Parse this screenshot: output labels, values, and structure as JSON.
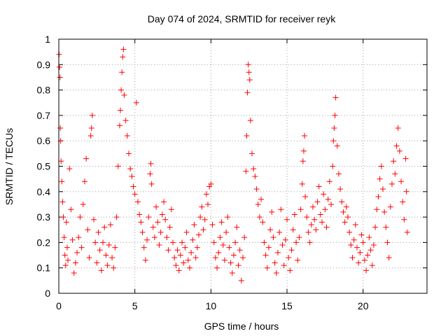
{
  "chart_data": {
    "type": "scatter",
    "title": "Day 074 of 2024, SRMTID for receiver reyk",
    "xlabel": "GPS time / hours",
    "ylabel": "SRMTID / TECUs",
    "xlim": [
      0,
      24.2
    ],
    "ylim": [
      0,
      1
    ],
    "x_ticks": [
      0,
      5,
      10,
      15,
      20
    ],
    "y_ticks": [
      0,
      0.1,
      0.2,
      0.3,
      0.4,
      0.5,
      0.6,
      0.7,
      0.8,
      0.9,
      1
    ],
    "x_tick_labels": [
      "0",
      "5",
      "10",
      "15",
      "20"
    ],
    "y_tick_labels": [
      "0",
      "0.1",
      "0.2",
      "0.3",
      "0.4",
      "0.5",
      "0.6",
      "0.7",
      "0.8",
      "0.9",
      "1"
    ],
    "grid": true,
    "marker": "+",
    "color": "#ff0000",
    "series": [
      {
        "name": "SRMTID",
        "points": [
          [
            0.02,
            0.94
          ],
          [
            0.05,
            0.89
          ],
          [
            0.08,
            0.85
          ],
          [
            0.1,
            0.65
          ],
          [
            0.12,
            0.6
          ],
          [
            0.15,
            0.52
          ],
          [
            0.2,
            0.44
          ],
          [
            0.25,
            0.36
          ],
          [
            0.3,
            0.3
          ],
          [
            0.35,
            0.22
          ],
          [
            0.4,
            0.15
          ],
          [
            0.45,
            0.11
          ],
          [
            0.5,
            0.28
          ],
          [
            0.55,
            0.18
          ],
          [
            0.6,
            0.13
          ],
          [
            0.7,
            0.49
          ],
          [
            0.8,
            0.33
          ],
          [
            0.9,
            0.21
          ],
          [
            1.0,
            0.08
          ],
          [
            1.1,
            0.12
          ],
          [
            1.2,
            0.16
          ],
          [
            1.3,
            0.22
          ],
          [
            1.4,
            0.3
          ],
          [
            1.5,
            0.18
          ],
          [
            1.6,
            0.35
          ],
          [
            1.7,
            0.44
          ],
          [
            1.8,
            0.53
          ],
          [
            1.9,
            0.25
          ],
          [
            2.0,
            0.14
          ],
          [
            2.1,
            0.62
          ],
          [
            2.15,
            0.65
          ],
          [
            2.2,
            0.7
          ],
          [
            2.3,
            0.29
          ],
          [
            2.4,
            0.2
          ],
          [
            2.5,
            0.12
          ],
          [
            2.6,
            0.24
          ],
          [
            2.7,
            0.17
          ],
          [
            2.8,
            0.09
          ],
          [
            2.9,
            0.2
          ],
          [
            3.0,
            0.26
          ],
          [
            3.1,
            0.15
          ],
          [
            3.2,
            0.11
          ],
          [
            3.3,
            0.19
          ],
          [
            3.4,
            0.27
          ],
          [
            3.5,
            0.14
          ],
          [
            3.6,
            0.1
          ],
          [
            3.7,
            0.18
          ],
          [
            3.8,
            0.3
          ],
          [
            3.9,
            0.5
          ],
          [
            4.0,
            0.66
          ],
          [
            4.05,
            0.72
          ],
          [
            4.1,
            0.8
          ],
          [
            4.15,
            0.87
          ],
          [
            4.2,
            0.93
          ],
          [
            4.25,
            0.96
          ],
          [
            4.3,
            0.78
          ],
          [
            4.4,
            0.68
          ],
          [
            4.5,
            0.62
          ],
          [
            4.6,
            0.55
          ],
          [
            4.7,
            0.49
          ],
          [
            4.8,
            0.46
          ],
          [
            4.9,
            0.42
          ],
          [
            5.0,
            0.39
          ],
          [
            5.1,
            0.75
          ],
          [
            5.2,
            0.36
          ],
          [
            5.3,
            0.31
          ],
          [
            5.4,
            0.28
          ],
          [
            5.5,
            0.24
          ],
          [
            5.6,
            0.18
          ],
          [
            5.7,
            0.13
          ],
          [
            5.8,
            0.21
          ],
          [
            5.9,
            0.3
          ],
          [
            6.0,
            0.47
          ],
          [
            6.05,
            0.51
          ],
          [
            6.1,
            0.43
          ],
          [
            6.2,
            0.26
          ],
          [
            6.3,
            0.22
          ],
          [
            6.4,
            0.34
          ],
          [
            6.5,
            0.28
          ],
          [
            6.6,
            0.19
          ],
          [
            6.7,
            0.24
          ],
          [
            6.8,
            0.31
          ],
          [
            6.9,
            0.36
          ],
          [
            7.0,
            0.29
          ],
          [
            7.1,
            0.22
          ],
          [
            7.2,
            0.17
          ],
          [
            7.3,
            0.26
          ],
          [
            7.4,
            0.33
          ],
          [
            7.5,
            0.2
          ],
          [
            7.6,
            0.14
          ],
          [
            7.7,
            0.11
          ],
          [
            7.8,
            0.17
          ],
          [
            7.9,
            0.09
          ],
          [
            8.0,
            0.15
          ],
          [
            8.1,
            0.2
          ],
          [
            8.2,
            0.12
          ],
          [
            8.3,
            0.18
          ],
          [
            8.4,
            0.24
          ],
          [
            8.5,
            0.13
          ],
          [
            8.6,
            0.1
          ],
          [
            8.7,
            0.16
          ],
          [
            8.8,
            0.21
          ],
          [
            8.9,
            0.27
          ],
          [
            9.0,
            0.14
          ],
          [
            9.1,
            0.18
          ],
          [
            9.2,
            0.23
          ],
          [
            9.3,
            0.3
          ],
          [
            9.4,
            0.34
          ],
          [
            9.5,
            0.25
          ],
          [
            9.6,
            0.29
          ],
          [
            9.7,
            0.39
          ],
          [
            9.8,
            0.35
          ],
          [
            9.9,
            0.42
          ],
          [
            10.0,
            0.43
          ],
          [
            10.1,
            0.27
          ],
          [
            10.2,
            0.2
          ],
          [
            10.3,
            0.14
          ],
          [
            10.4,
            0.1
          ],
          [
            10.5,
            0.16
          ],
          [
            10.6,
            0.22
          ],
          [
            10.7,
            0.28
          ],
          [
            10.8,
            0.19
          ],
          [
            10.9,
            0.13
          ],
          [
            11.0,
            0.24
          ],
          [
            11.1,
            0.3
          ],
          [
            11.2,
            0.18
          ],
          [
            11.3,
            0.12
          ],
          [
            11.4,
            0.08
          ],
          [
            11.5,
            0.15
          ],
          [
            11.6,
            0.2
          ],
          [
            11.7,
            0.26
          ],
          [
            11.8,
            0.11
          ],
          [
            11.9,
            0.17
          ],
          [
            12.0,
            0.05
          ],
          [
            12.1,
            0.14
          ],
          [
            12.2,
            0.22
          ],
          [
            12.3,
            0.48
          ],
          [
            12.35,
            0.62
          ],
          [
            12.4,
            0.79
          ],
          [
            12.45,
            0.9
          ],
          [
            12.5,
            0.87
          ],
          [
            12.55,
            0.84
          ],
          [
            12.6,
            0.68
          ],
          [
            12.7,
            0.55
          ],
          [
            12.8,
            0.49
          ],
          [
            12.9,
            0.46
          ],
          [
            13.0,
            0.41
          ],
          [
            13.1,
            0.35
          ],
          [
            13.2,
            0.3
          ],
          [
            13.3,
            0.37
          ],
          [
            13.4,
            0.28
          ],
          [
            13.5,
            0.2
          ],
          [
            13.6,
            0.15
          ],
          [
            13.7,
            0.1
          ],
          [
            13.8,
            0.18
          ],
          [
            13.9,
            0.25
          ],
          [
            14.0,
            0.32
          ],
          [
            14.1,
            0.22
          ],
          [
            14.2,
            0.12
          ],
          [
            14.3,
            0.08
          ],
          [
            14.4,
            0.16
          ],
          [
            14.5,
            0.24
          ],
          [
            14.6,
            0.33
          ],
          [
            14.7,
            0.19
          ],
          [
            14.8,
            0.11
          ],
          [
            14.9,
            0.21
          ],
          [
            15.0,
            0.29
          ],
          [
            15.1,
            0.14
          ],
          [
            15.2,
            0.09
          ],
          [
            15.3,
            0.17
          ],
          [
            15.4,
            0.25
          ],
          [
            15.5,
            0.31
          ],
          [
            15.6,
            0.2
          ],
          [
            15.7,
            0.13
          ],
          [
            15.8,
            0.22
          ],
          [
            15.9,
            0.33
          ],
          [
            16.0,
            0.43
          ],
          [
            16.05,
            0.52
          ],
          [
            16.1,
            0.56
          ],
          [
            16.15,
            0.62
          ],
          [
            16.2,
            0.38
          ],
          [
            16.3,
            0.3
          ],
          [
            16.4,
            0.24
          ],
          [
            16.5,
            0.2
          ],
          [
            16.6,
            0.27
          ],
          [
            16.7,
            0.34
          ],
          [
            16.8,
            0.29
          ],
          [
            16.9,
            0.25
          ],
          [
            17.0,
            0.36
          ],
          [
            17.1,
            0.42
          ],
          [
            17.2,
            0.31
          ],
          [
            17.3,
            0.28
          ],
          [
            17.4,
            0.39
          ],
          [
            17.5,
            0.33
          ],
          [
            17.6,
            0.26
          ],
          [
            17.7,
            0.37
          ],
          [
            17.8,
            0.44
          ],
          [
            17.9,
            0.35
          ],
          [
            18.0,
            0.5
          ],
          [
            18.05,
            0.6
          ],
          [
            18.1,
            0.65
          ],
          [
            18.15,
            0.7
          ],
          [
            18.2,
            0.77
          ],
          [
            18.3,
            0.58
          ],
          [
            18.4,
            0.47
          ],
          [
            18.5,
            0.41
          ],
          [
            18.6,
            0.36
          ],
          [
            18.7,
            0.32
          ],
          [
            18.8,
            0.28
          ],
          [
            18.9,
            0.34
          ],
          [
            19.0,
            0.3
          ],
          [
            19.1,
            0.24
          ],
          [
            19.2,
            0.19
          ],
          [
            19.3,
            0.14
          ],
          [
            19.4,
            0.21
          ],
          [
            19.5,
            0.27
          ],
          [
            19.6,
            0.18
          ],
          [
            19.7,
            0.12
          ],
          [
            19.8,
            0.16
          ],
          [
            19.9,
            0.23
          ],
          [
            20.0,
            0.2
          ],
          [
            20.1,
            0.13
          ],
          [
            20.2,
            0.09
          ],
          [
            20.3,
            0.15
          ],
          [
            20.4,
            0.22
          ],
          [
            20.5,
            0.17
          ],
          [
            20.6,
            0.11
          ],
          [
            20.7,
            0.19
          ],
          [
            20.8,
            0.26
          ],
          [
            20.9,
            0.33
          ],
          [
            21.0,
            0.38
          ],
          [
            21.1,
            0.45
          ],
          [
            21.2,
            0.5
          ],
          [
            21.3,
            0.41
          ],
          [
            21.4,
            0.32
          ],
          [
            21.5,
            0.26
          ],
          [
            21.6,
            0.2
          ],
          [
            21.7,
            0.14
          ],
          [
            21.8,
            0.34
          ],
          [
            21.9,
            0.43
          ],
          [
            22.0,
            0.52
          ],
          [
            22.1,
            0.47
          ],
          [
            22.2,
            0.58
          ],
          [
            22.3,
            0.65
          ],
          [
            22.4,
            0.56
          ],
          [
            22.5,
            0.44
          ],
          [
            22.6,
            0.36
          ],
          [
            22.7,
            0.29
          ],
          [
            22.8,
            0.53
          ],
          [
            22.85,
            0.4
          ],
          [
            22.9,
            0.24
          ]
        ]
      }
    ]
  }
}
